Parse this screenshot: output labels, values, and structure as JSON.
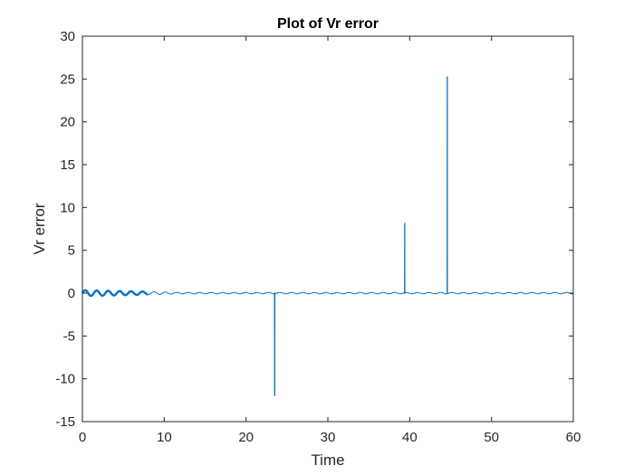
{
  "chart_data": {
    "type": "line",
    "title": "Plot of Vr error",
    "xlabel": "Time",
    "ylabel": "Vr error",
    "xlim": [
      0,
      60
    ],
    "ylim": [
      -15,
      30
    ],
    "xticks": [
      0,
      10,
      20,
      30,
      40,
      50,
      60
    ],
    "yticks": [
      -15,
      -10,
      -5,
      0,
      5,
      10,
      15,
      20,
      25,
      30
    ],
    "xtick_labels": [
      "0",
      "10",
      "20",
      "30",
      "40",
      "50",
      "60"
    ],
    "ytick_labels": [
      "-15",
      "-10",
      "-5",
      "0",
      "5",
      "10",
      "15",
      "20",
      "25",
      "30"
    ],
    "grid": false,
    "box": true,
    "series": [
      {
        "color": "#0072bd",
        "baseline": 0,
        "oscillation": {
          "period": 1.4,
          "amplitude_start": 0.35,
          "amplitude_end": 0.08,
          "decay_end_time": 12
        },
        "spikes": [
          {
            "x": 23.5,
            "y": -12.0
          },
          {
            "x": 39.4,
            "y": 8.2
          },
          {
            "x": 44.6,
            "y": 25.3
          }
        ]
      }
    ]
  }
}
